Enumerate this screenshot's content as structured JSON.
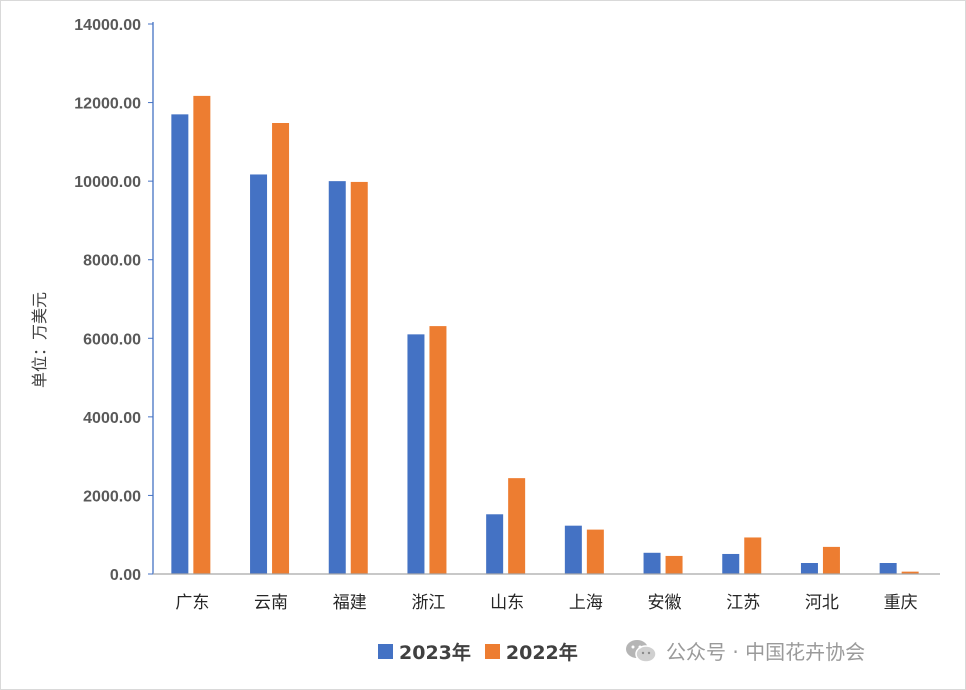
{
  "chart_data": {
    "type": "bar",
    "title": "",
    "xlabel": "",
    "ylabel": "单位：万美元",
    "ylim": [
      0,
      14000
    ],
    "yticks": [
      "0.00",
      "2000.00",
      "4000.00",
      "6000.00",
      "8000.00",
      "10000.00",
      "12000.00",
      "14000.00"
    ],
    "grid": false,
    "legend_position": "bottom",
    "categories": [
      "广东",
      "云南",
      "福建",
      "浙江",
      "山东",
      "上海",
      "安徽",
      "江苏",
      "河北",
      "重庆"
    ],
    "series": [
      {
        "name": "2023年",
        "color": "#4472c4",
        "values": [
          11700,
          10170,
          10000,
          6100,
          1520,
          1230,
          540,
          510,
          280,
          280
        ]
      },
      {
        "name": "2022年",
        "color": "#ed7d31",
        "values": [
          12170,
          11480,
          9980,
          6310,
          2440,
          1130,
          460,
          930,
          690,
          60
        ]
      }
    ]
  },
  "watermark": {
    "icon": "wechat-icon",
    "text": "公众号 · 中国花卉协会"
  }
}
